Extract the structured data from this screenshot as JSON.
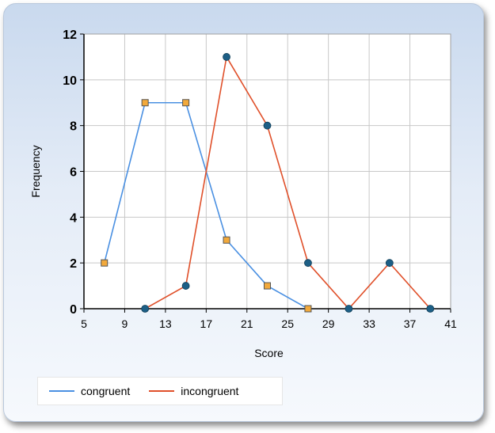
{
  "chart_data": {
    "type": "line",
    "title": "",
    "xlabel": "Score",
    "ylabel": "Frequency",
    "xlim": [
      5,
      41
    ],
    "ylim": [
      0,
      12
    ],
    "x_ticks": [
      "5",
      "9",
      "13",
      "17",
      "21",
      "25",
      "29",
      "33",
      "37",
      "41"
    ],
    "y_ticks": [
      "0",
      "2",
      "4",
      "6",
      "8",
      "10",
      "12"
    ],
    "grid": true,
    "legend_position": "bottom-left",
    "series": [
      {
        "name": "congruent",
        "color": "#4a90e2",
        "marker": "square",
        "marker_color": "#f2a93b",
        "points": [
          {
            "x": 7,
            "y": 2
          },
          {
            "x": 11,
            "y": 9
          },
          {
            "x": 15,
            "y": 9
          },
          {
            "x": 19,
            "y": 3
          },
          {
            "x": 23,
            "y": 1
          },
          {
            "x": 27,
            "y": 0
          }
        ]
      },
      {
        "name": "incongruent",
        "color": "#e0502a",
        "marker": "circle",
        "marker_color": "#1d5f86",
        "points": [
          {
            "x": 11,
            "y": 0
          },
          {
            "x": 15,
            "y": 1
          },
          {
            "x": 19,
            "y": 11
          },
          {
            "x": 23,
            "y": 8
          },
          {
            "x": 27,
            "y": 2
          },
          {
            "x": 31,
            "y": 0
          },
          {
            "x": 35,
            "y": 2
          },
          {
            "x": 39,
            "y": 0
          }
        ]
      }
    ]
  }
}
